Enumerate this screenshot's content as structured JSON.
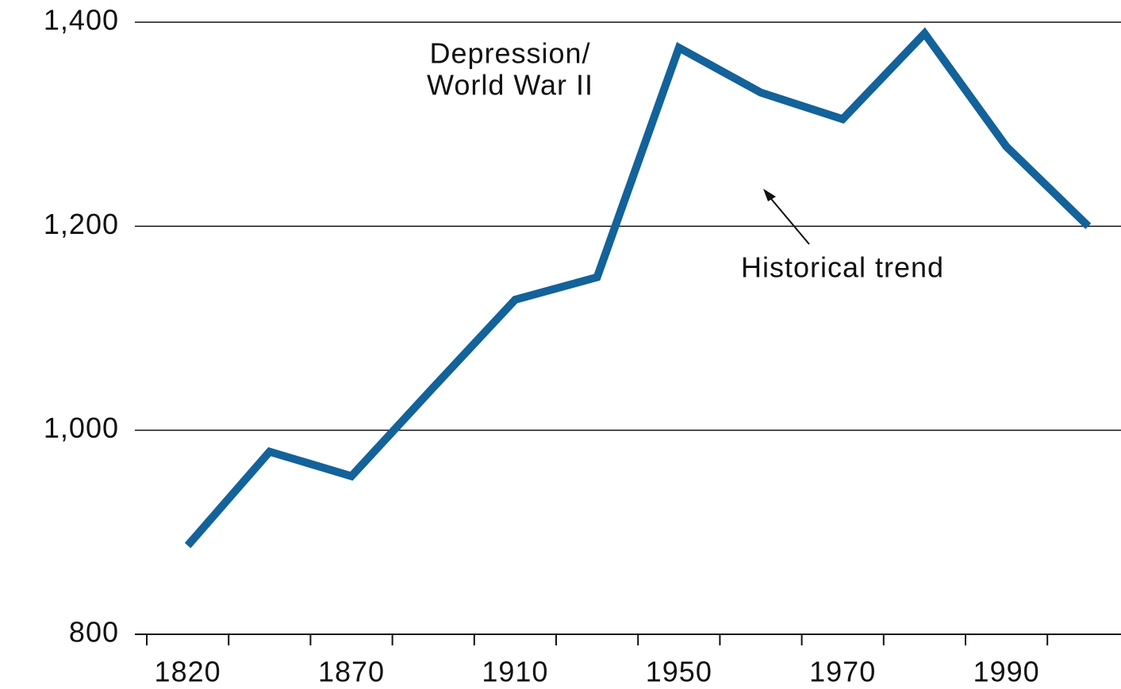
{
  "chart_data": {
    "type": "line",
    "categories": [
      "1820",
      null,
      "1870",
      null,
      "1910",
      null,
      "1950",
      null,
      "1970",
      null,
      "1990",
      null
    ],
    "series": [
      {
        "color": "#13629a",
        "values": [
          887,
          979,
          955,
          1042,
          1128,
          1150,
          1375,
          1331,
          1305,
          1389,
          1278,
          1200
        ]
      },
      {
        "name": "Historical trend",
        "color": "#000000",
        "dashed": true,
        "values": [
          null,
          null,
          null,
          null,
          null,
          1150,
          null,
          null,
          1302,
          null,
          null,
          null
        ]
      }
    ],
    "annotation": [
      "Depression/",
      "World War II"
    ],
    "ylim": [
      800,
      1400
    ],
    "yticks": [
      800,
      {
        "value": 1000,
        "label": "1,000"
      },
      {
        "value": 1200,
        "label": "1,200"
      },
      {
        "value": 1400,
        "label": "1,400"
      }
    ],
    "grid": true
  }
}
